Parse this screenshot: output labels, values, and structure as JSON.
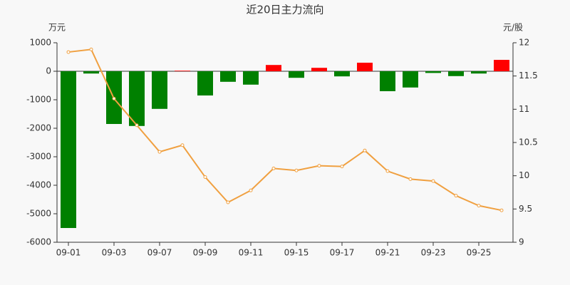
{
  "chart_data": {
    "type": "bar-line",
    "title": "近20日主力流向",
    "y_unit": "万元",
    "y2_unit": "元/股",
    "categories": [
      "09-01",
      null,
      "09-03",
      null,
      "09-07",
      null,
      "09-09",
      null,
      "09-11",
      null,
      "09-15",
      null,
      "09-17",
      null,
      "09-21",
      null,
      "09-23",
      null,
      "09-25",
      null
    ],
    "series": [
      {
        "type": "bar",
        "positive_color": "#ff0000",
        "negative_color": "#008000",
        "values": [
          -5500,
          -80,
          -1850,
          -1920,
          -1320,
          20,
          -850,
          -370,
          -470,
          220,
          -230,
          120,
          -180,
          300,
          -700,
          -570,
          -60,
          -170,
          -80,
          400
        ]
      },
      {
        "type": "line",
        "axis": "y2",
        "color": "#f0a040",
        "values": [
          11.86,
          11.9,
          11.16,
          10.76,
          10.36,
          10.46,
          9.98,
          9.6,
          9.78,
          10.11,
          10.08,
          10.15,
          10.14,
          10.38,
          10.07,
          9.95,
          9.92,
          9.7,
          9.55,
          9.48
        ]
      }
    ],
    "ylim": [
      -6000,
      1000
    ],
    "yticks": [
      -6000,
      -5000,
      -4000,
      -3000,
      -2000,
      -1000,
      0,
      1000
    ],
    "y2lim": [
      9,
      12
    ],
    "y2ticks": [
      9,
      9.5,
      10,
      10.5,
      11,
      11.5,
      12
    ]
  }
}
